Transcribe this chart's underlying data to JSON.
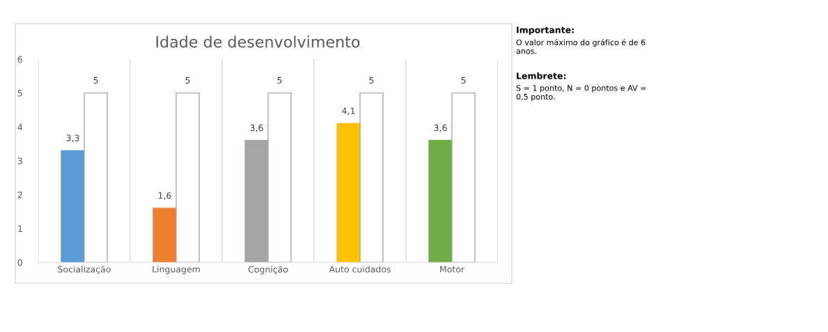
{
  "chart_data": {
    "type": "bar",
    "title": "Idade de desenvolvimento",
    "categories": [
      "Socialização",
      "Linguagem",
      "Cognição",
      "Auto cuidados",
      "Motor"
    ],
    "series": [
      {
        "colors": [
          "#5b9bd5",
          "#ed7d31",
          "#a5a5a5",
          "#ffc000",
          "#70ad47"
        ],
        "values": [
          3.3,
          1.6,
          3.6,
          4.1,
          3.6
        ],
        "value_labels": [
          "3,3",
          "1,6",
          "3,6",
          "4,1",
          "3,6"
        ]
      },
      {
        "color": "#ffffff",
        "values": [
          5,
          5,
          5,
          5,
          5
        ],
        "value_labels": [
          "5",
          "5",
          "5",
          "5",
          "5"
        ]
      }
    ],
    "ylim": [
      0,
      6
    ],
    "yticks": [
      0,
      1,
      2,
      3,
      4,
      5,
      6
    ],
    "grid": "x",
    "legend": false,
    "annotations": [
      "Importante:",
      "O valor máximo do gráfico é de 6 anos.",
      "Lembrete:",
      "S = 1 ponto, N = 0 pontos e AV = 0,5 ponto."
    ]
  }
}
